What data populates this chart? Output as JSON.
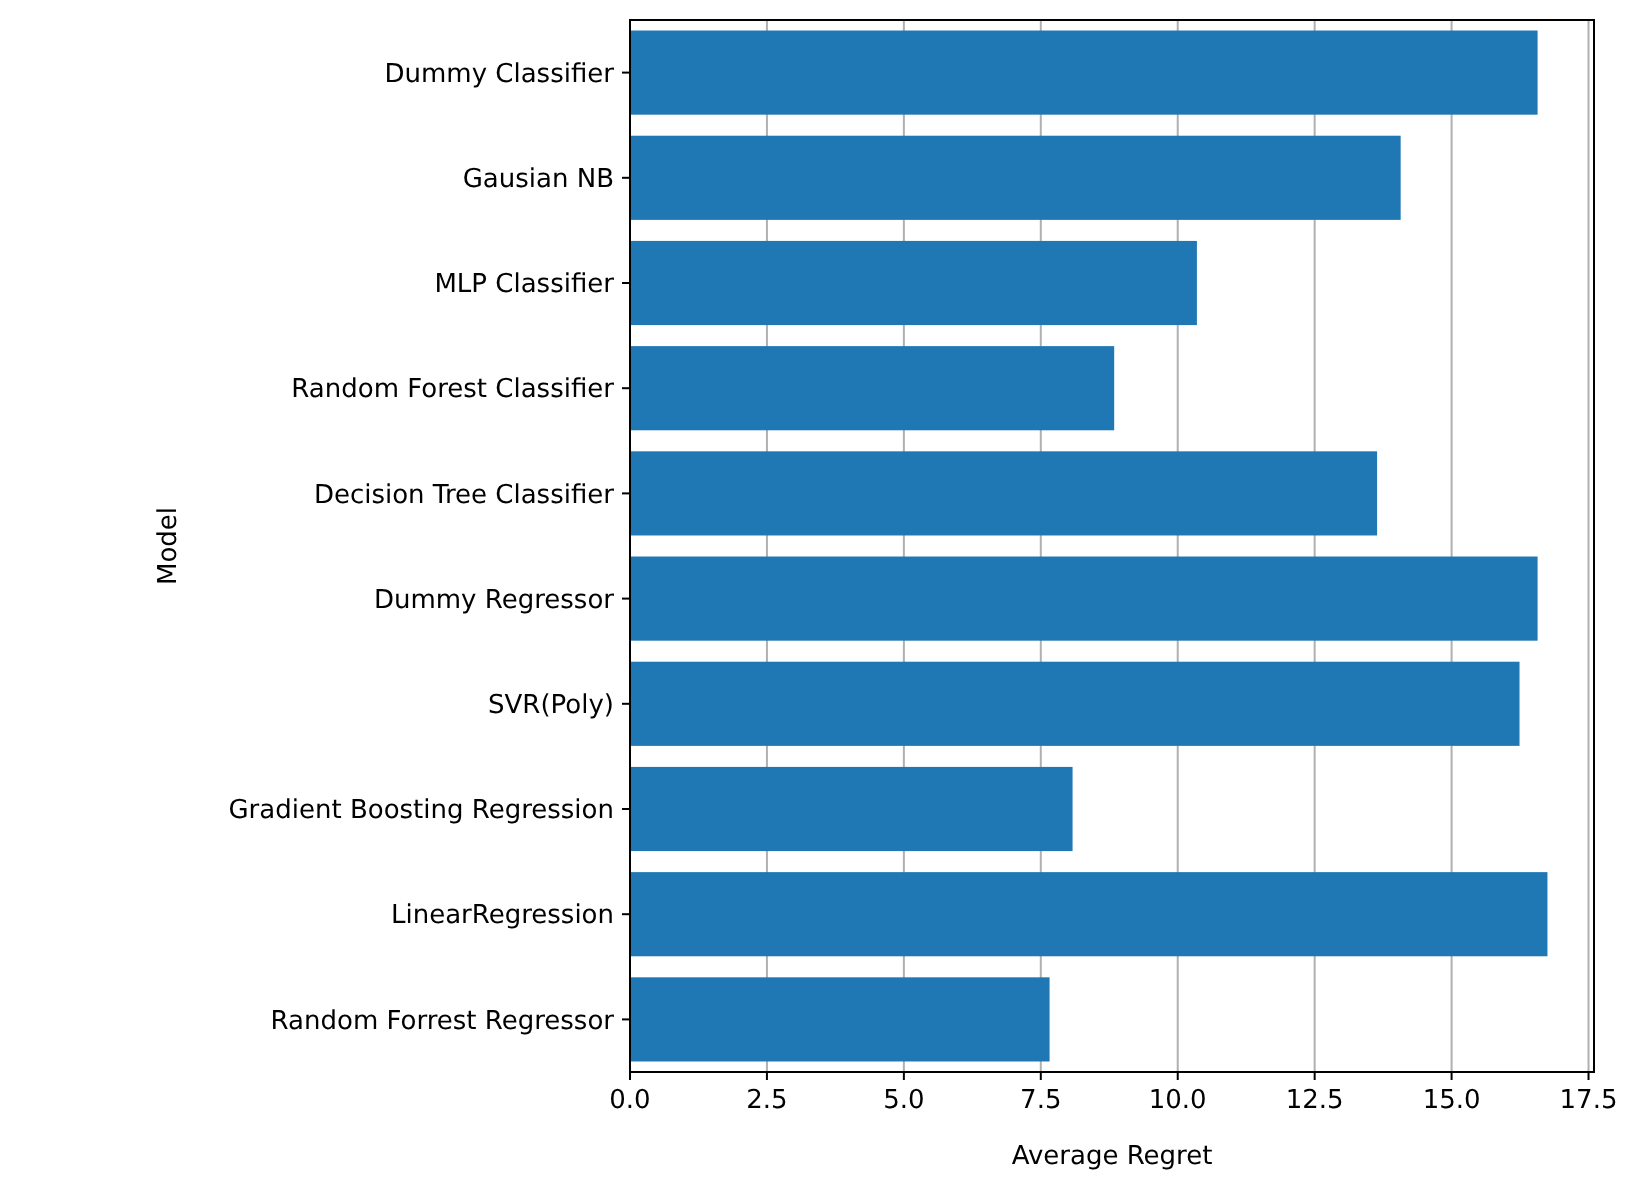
{
  "chart_data": {
    "type": "bar",
    "orientation": "horizontal",
    "xlabel": "Average Regret",
    "ylabel": "Model",
    "categories": [
      "Dummy Classifier",
      "Gausian NB",
      "MLP Classifier",
      "Random Forest Classifier",
      "Decision Tree Classifier",
      "Dummy Regressor",
      "SVR(Poly)",
      "Gradient Boosting Regression",
      "LinearRegression",
      "Random Forrest Regressor"
    ],
    "values": [
      16.57,
      14.07,
      10.35,
      8.84,
      13.64,
      16.57,
      16.24,
      8.08,
      16.75,
      7.66
    ],
    "color": "#1f77b4",
    "xlim": [
      0,
      17.6
    ],
    "xticks": [
      {
        "value": 0,
        "label": "0.0"
      },
      2.5,
      {
        "value": 5,
        "label": "5.0"
      },
      7.5,
      {
        "value": 10,
        "label": "10.0"
      },
      12.5,
      {
        "value": 15,
        "label": "15.0"
      },
      17.5
    ],
    "grid": "x"
  }
}
